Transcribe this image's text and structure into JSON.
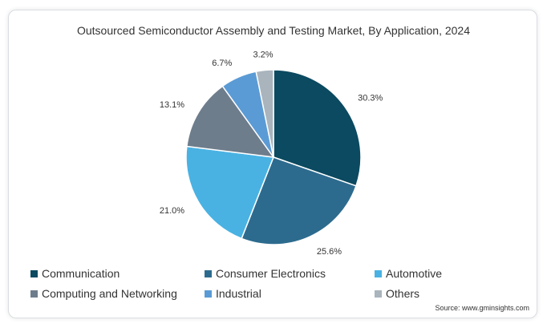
{
  "chart_data": {
    "type": "pie",
    "title": "Outsourced Semiconductor Assembly and Testing Market, By Application, 2024",
    "categories": [
      "Communication",
      "Consumer Electronics",
      "Automotive",
      "Computing and Networking",
      "Industrial",
      "Others"
    ],
    "values": [
      30.3,
      25.6,
      21.0,
      13.1,
      6.7,
      3.2
    ],
    "value_labels": [
      "30.3%",
      "25.6%",
      "21.0%",
      "13.1%",
      "6.7%",
      "3.2%"
    ],
    "colors": [
      "#0b4a60",
      "#2d6b8e",
      "#49b2e3",
      "#6e7d8c",
      "#5b9bd5",
      "#a9b4bd"
    ],
    "start_angle": "12 o'clock",
    "direction": "clockwise",
    "legend_position": "bottom",
    "source": "Source: www.gminsights.com"
  }
}
